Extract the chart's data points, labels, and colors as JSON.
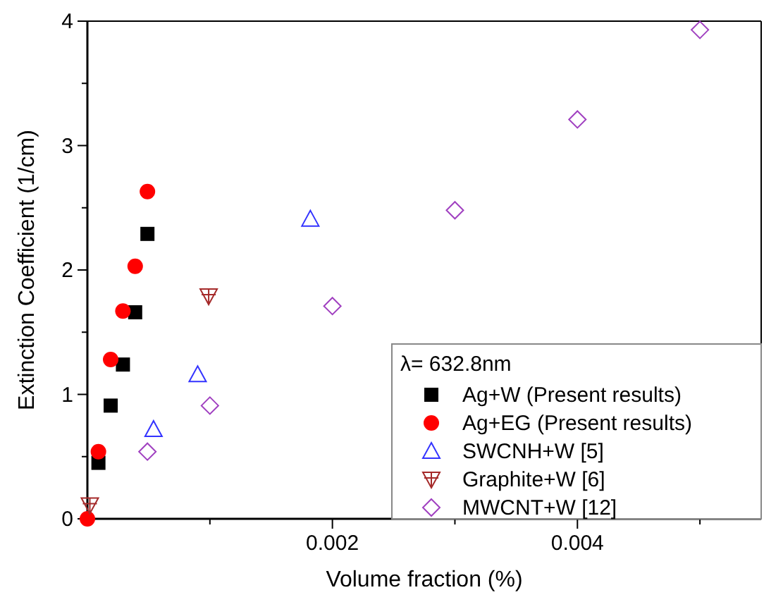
{
  "chart_data": {
    "type": "scatter",
    "xlabel": "Volume fraction (%)",
    "ylabel": "Extinction Coefficient (1/cm)",
    "legend_title": "λ= 632.8nm",
    "legend": "bottom right",
    "grid": false,
    "xlim": [
      0,
      0.0055
    ],
    "xticks": [
      {
        "value": 0.001,
        "label": null
      },
      {
        "value": 0.002,
        "label": "0.002"
      },
      {
        "value": 0.003,
        "label": null
      },
      {
        "value": 0.004,
        "label": "0.004"
      },
      {
        "value": 0.005,
        "label": null
      }
    ],
    "ylim": [
      0,
      4
    ],
    "yticks": [
      0,
      {
        "value": 0.5,
        "label": null
      },
      1,
      {
        "value": 1.5,
        "label": null
      },
      2,
      {
        "value": 2.5,
        "label": null
      },
      3,
      {
        "value": 3.5,
        "label": null
      },
      4
    ],
    "series": [
      {
        "name": "Ag+W (Present results)",
        "color": "#000000",
        "marker": "square",
        "x": [
          9e-05,
          0.00019,
          0.00029,
          0.00039,
          0.00049
        ],
        "values": [
          0.45,
          0.91,
          1.24,
          1.66,
          2.29
        ]
      },
      {
        "name": "Ag+EG (Present results)",
        "color": "#ff0000",
        "marker": "circle",
        "x": [
          0,
          9e-05,
          0.00019,
          0.00029,
          0.00039,
          0.00049
        ],
        "values": [
          0,
          0.54,
          1.28,
          1.67,
          2.03,
          2.63
        ]
      },
      {
        "name": "SWCNH+W [5]",
        "color": "#3333ff",
        "marker": "triangle",
        "x": [
          0.00054,
          0.0009,
          0.00182
        ],
        "values": [
          0.72,
          1.16,
          2.41
        ]
      },
      {
        "name": "Graphite+W [6]",
        "color": "#a52a2a",
        "marker": "cross",
        "x": [
          2e-05,
          0.00099
        ],
        "values": [
          0.11,
          1.79
        ]
      },
      {
        "name": "MWCNT+W [12]",
        "color": "#a040c0",
        "marker": "diamond",
        "x": [
          0.00049,
          0.001,
          0.002,
          0.003,
          0.004,
          0.005
        ],
        "values": [
          0.54,
          0.91,
          1.71,
          2.48,
          3.21,
          3.93
        ]
      }
    ]
  }
}
